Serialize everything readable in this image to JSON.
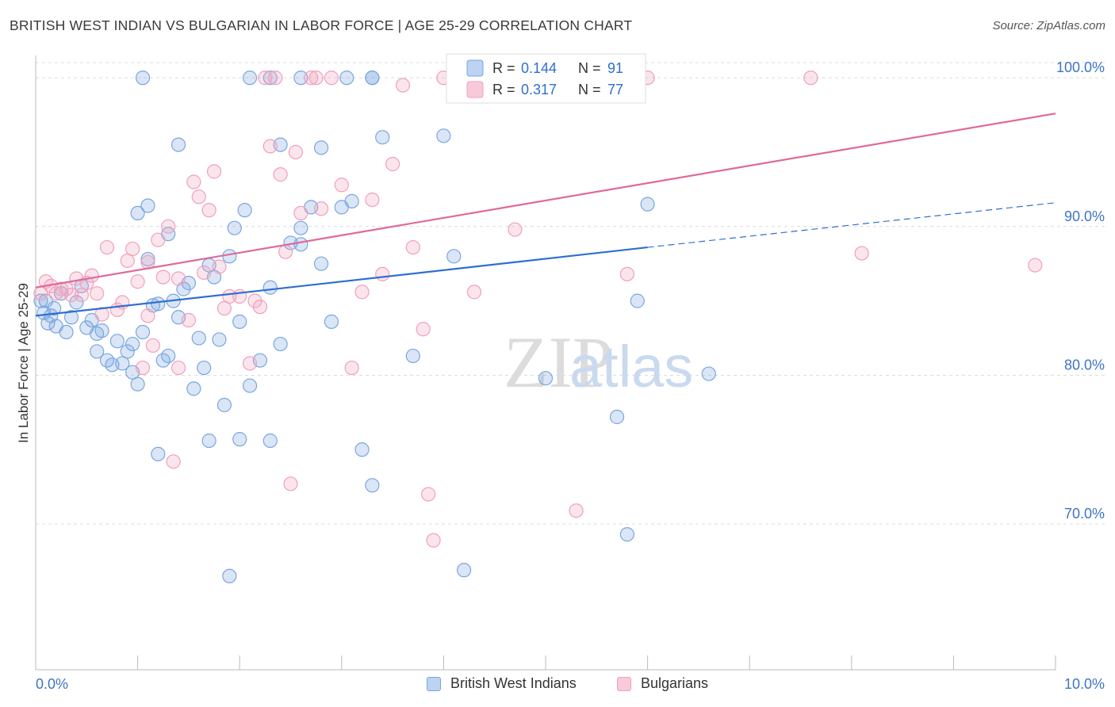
{
  "header": {
    "title": "BRITISH WEST INDIAN VS BULGARIAN IN LABOR FORCE | AGE 25-29 CORRELATION CHART",
    "source": "Source: ZipAtlas.com"
  },
  "watermark": {
    "zip": "ZIP",
    "atlas": "atlas"
  },
  "legend_box": {
    "rows": [
      {
        "r_label": "R = ",
        "r_value": "0.144",
        "n_label": "N = ",
        "n_value": "91",
        "color": "#7aa6e0"
      },
      {
        "r_label": "R = ",
        "r_value": "0.317",
        "n_label": "N = ",
        "n_value": "77",
        "color": "#f0a0bc"
      }
    ]
  },
  "bottom_legend": [
    {
      "label": "British West Indians",
      "color": "#7aa6e0"
    },
    {
      "label": "Bulgarians",
      "color": "#f0a0bc"
    }
  ],
  "chart_data": {
    "type": "scatter",
    "title": "BRITISH WEST INDIAN VS BULGARIAN IN LABOR FORCE | AGE 25-29 CORRELATION CHART",
    "xlabel": "",
    "ylabel": "In Labor Force | Age 25-29",
    "xlim": [
      0,
      10
    ],
    "ylim": [
      60.2,
      101.5
    ],
    "x_tick_labels": [
      "0.0%",
      "10.0%"
    ],
    "y_ticks": [
      70,
      80,
      90,
      100
    ],
    "y_tick_labels": [
      "70.0%",
      "80.0%",
      "90.0%",
      "100.0%"
    ],
    "grid": true,
    "legend_position": "top-center",
    "series": [
      {
        "name": "British West Indians",
        "color": "#7aa6e0",
        "line_color": "#2f6fcf",
        "trend": {
          "x0": 0,
          "y0": 84.0,
          "x1": 6.0,
          "y1": 88.6,
          "extend_to": 10,
          "extend_y": 91.6
        },
        "points": [
          [
            0.05,
            85.0
          ],
          [
            0.08,
            84.2
          ],
          [
            0.1,
            85.0
          ],
          [
            0.12,
            83.5
          ],
          [
            0.15,
            84.0
          ],
          [
            0.18,
            84.5
          ],
          [
            0.2,
            83.3
          ],
          [
            0.25,
            85.5
          ],
          [
            0.3,
            82.9
          ],
          [
            0.35,
            83.9
          ],
          [
            0.4,
            84.9
          ],
          [
            0.45,
            86.0
          ],
          [
            0.5,
            83.2
          ],
          [
            0.55,
            83.7
          ],
          [
            0.6,
            82.8
          ],
          [
            0.6,
            81.6
          ],
          [
            0.65,
            83.0
          ],
          [
            0.7,
            81.0
          ],
          [
            0.75,
            80.7
          ],
          [
            0.8,
            82.3
          ],
          [
            0.85,
            80.8
          ],
          [
            0.9,
            81.6
          ],
          [
            0.95,
            82.1
          ],
          [
            0.95,
            80.2
          ],
          [
            1.0,
            79.4
          ],
          [
            1.05,
            82.9
          ],
          [
            1.1,
            87.8
          ],
          [
            1.15,
            84.7
          ],
          [
            1.2,
            84.8
          ],
          [
            1.25,
            81.0
          ],
          [
            1.3,
            81.3
          ],
          [
            1.35,
            85.0
          ],
          [
            1.4,
            83.9
          ],
          [
            1.45,
            85.8
          ],
          [
            1.5,
            86.2
          ],
          [
            1.55,
            79.1
          ],
          [
            1.6,
            82.5
          ],
          [
            1.65,
            80.5
          ],
          [
            1.7,
            87.4
          ],
          [
            1.75,
            86.6
          ],
          [
            1.8,
            82.4
          ],
          [
            1.85,
            78.0
          ],
          [
            1.9,
            88.0
          ],
          [
            1.95,
            89.9
          ],
          [
            2.0,
            83.6
          ],
          [
            2.05,
            91.1
          ],
          [
            2.1,
            79.3
          ],
          [
            2.2,
            81.0
          ],
          [
            2.3,
            85.9
          ],
          [
            2.4,
            82.1
          ],
          [
            2.5,
            88.9
          ],
          [
            2.6,
            89.9
          ],
          [
            2.7,
            91.3
          ],
          [
            2.8,
            87.5
          ],
          [
            2.9,
            83.6
          ],
          [
            3.0,
            91.3
          ],
          [
            3.1,
            91.7
          ],
          [
            3.2,
            75.0
          ],
          [
            3.3,
            72.6
          ],
          [
            2.3,
            75.6
          ],
          [
            2.0,
            75.7
          ],
          [
            1.9,
            66.5
          ],
          [
            1.7,
            75.6
          ],
          [
            1.2,
            74.7
          ],
          [
            1.1,
            91.4
          ],
          [
            1.3,
            89.5
          ],
          [
            1.0,
            90.9
          ],
          [
            1.4,
            95.5
          ],
          [
            2.4,
            95.5
          ],
          [
            2.6,
            88.8
          ],
          [
            2.8,
            95.3
          ],
          [
            3.4,
            96.0
          ],
          [
            3.7,
            81.3
          ],
          [
            4.0,
            96.1
          ],
          [
            4.1,
            88.0
          ],
          [
            4.2,
            66.9
          ],
          [
            5.0,
            79.8
          ],
          [
            5.1,
            100.0
          ],
          [
            5.7,
            77.2
          ],
          [
            5.8,
            69.3
          ],
          [
            5.9,
            85.0
          ],
          [
            6.0,
            91.5
          ],
          [
            6.6,
            80.1
          ],
          [
            1.05,
            100.0
          ],
          [
            2.1,
            100.0
          ],
          [
            2.3,
            100.0
          ],
          [
            2.6,
            100.0
          ],
          [
            3.05,
            100.0
          ],
          [
            3.3,
            100.0
          ],
          [
            3.3,
            100.0
          ],
          [
            4.6,
            100.0
          ]
        ]
      },
      {
        "name": "Bulgarians",
        "color": "#f0a0bc",
        "line_color": "#e0699a",
        "trend": {
          "x0": 0,
          "y0": 85.9,
          "x1": 10,
          "y1": 97.6
        },
        "points": [
          [
            0.05,
            85.5
          ],
          [
            0.1,
            86.3
          ],
          [
            0.15,
            86.0
          ],
          [
            0.2,
            85.5
          ],
          [
            0.3,
            85.8
          ],
          [
            0.4,
            86.5
          ],
          [
            0.5,
            86.2
          ],
          [
            0.55,
            86.7
          ],
          [
            0.6,
            85.5
          ],
          [
            0.65,
            84.1
          ],
          [
            0.7,
            88.6
          ],
          [
            0.8,
            84.4
          ],
          [
            0.85,
            84.9
          ],
          [
            0.9,
            87.7
          ],
          [
            0.95,
            88.5
          ],
          [
            1.0,
            86.3
          ],
          [
            1.05,
            80.5
          ],
          [
            1.1,
            84.0
          ],
          [
            1.15,
            82.0
          ],
          [
            1.2,
            89.1
          ],
          [
            1.25,
            86.6
          ],
          [
            1.3,
            90.0
          ],
          [
            1.35,
            74.2
          ],
          [
            1.4,
            80.5
          ],
          [
            1.5,
            83.7
          ],
          [
            1.55,
            93.0
          ],
          [
            1.6,
            92.0
          ],
          [
            1.7,
            91.1
          ],
          [
            1.75,
            93.7
          ],
          [
            1.8,
            87.3
          ],
          [
            1.85,
            84.5
          ],
          [
            1.9,
            85.3
          ],
          [
            2.0,
            85.3
          ],
          [
            2.1,
            80.8
          ],
          [
            2.2,
            84.6
          ],
          [
            2.25,
            100.0
          ],
          [
            2.3,
            95.4
          ],
          [
            2.4,
            93.5
          ],
          [
            2.45,
            88.3
          ],
          [
            2.5,
            72.7
          ],
          [
            2.55,
            95.0
          ],
          [
            2.6,
            90.9
          ],
          [
            2.7,
            100.0
          ],
          [
            2.75,
            100.0
          ],
          [
            2.8,
            91.2
          ],
          [
            2.9,
            100.0
          ],
          [
            3.0,
            92.8
          ],
          [
            3.1,
            80.5
          ],
          [
            3.2,
            85.6
          ],
          [
            3.3,
            91.8
          ],
          [
            3.4,
            86.8
          ],
          [
            3.5,
            94.2
          ],
          [
            3.6,
            99.5
          ],
          [
            3.7,
            88.6
          ],
          [
            3.8,
            83.1
          ],
          [
            3.85,
            72.0
          ],
          [
            3.9,
            68.9
          ],
          [
            4.0,
            100.0
          ],
          [
            4.3,
            85.6
          ],
          [
            4.7,
            89.8
          ],
          [
            5.0,
            100.0
          ],
          [
            5.1,
            100.0
          ],
          [
            5.3,
            70.9
          ],
          [
            5.6,
            100.0
          ],
          [
            5.8,
            86.8
          ],
          [
            6.0,
            100.0
          ],
          [
            7.6,
            100.0
          ],
          [
            8.1,
            88.2
          ],
          [
            9.8,
            87.4
          ],
          [
            0.25,
            85.8
          ],
          [
            0.35,
            85.4
          ],
          [
            0.45,
            85.4
          ],
          [
            1.1,
            87.6
          ],
          [
            1.4,
            86.5
          ],
          [
            1.65,
            86.9
          ],
          [
            2.15,
            85.0
          ],
          [
            2.35,
            100.0
          ]
        ]
      }
    ]
  }
}
